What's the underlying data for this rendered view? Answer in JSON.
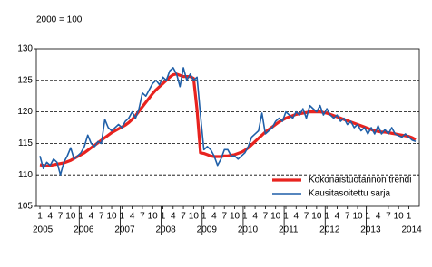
{
  "chart_data": {
    "type": "line",
    "annotation": "2000 = 100",
    "categories": [
      "1",
      null,
      null,
      "4",
      null,
      null,
      "7",
      null,
      null,
      "10",
      null,
      null,
      "1",
      null,
      null,
      "4",
      null,
      null,
      "7",
      null,
      null,
      "10",
      null,
      null,
      "1",
      null,
      null,
      "4",
      null,
      null,
      "7",
      null,
      null,
      "10",
      null,
      null,
      "1",
      null,
      null,
      "4",
      null,
      null,
      "7",
      null,
      null,
      "10",
      null,
      null,
      "1",
      null,
      null,
      "4",
      null,
      null,
      "7",
      null,
      null,
      "10",
      null,
      null,
      "1",
      null,
      null,
      "4",
      null,
      null,
      "7",
      null,
      null,
      "10",
      null,
      null,
      "1",
      null,
      null,
      "4",
      null,
      null,
      "7",
      null,
      null,
      "10",
      null,
      null,
      "1",
      null,
      null,
      "4",
      null,
      null,
      "7",
      null,
      null,
      "10",
      null,
      null,
      "1",
      null,
      null,
      "4",
      null,
      null,
      "7",
      null,
      null,
      "10",
      null,
      null,
      "1",
      null,
      null
    ],
    "year_labels": [
      "2005",
      "2006",
      "2007",
      "2008",
      "2009",
      "2010",
      "2011",
      "2012",
      "2013",
      "2014"
    ],
    "series": [
      {
        "name": "Kokonaistuotannon trendi",
        "color": "#e8231f",
        "values": [
          111.6,
          111.5,
          111.4,
          111.5,
          111.6,
          111.7,
          111.8,
          111.9,
          112.1,
          112.3,
          112.6,
          112.9,
          113.2,
          113.5,
          113.9,
          114.3,
          114.7,
          115.1,
          115.5,
          115.9,
          116.3,
          116.7,
          117.0,
          117.3,
          117.6,
          117.9,
          118.3,
          118.8,
          119.4,
          120.1,
          120.8,
          121.5,
          122.2,
          122.9,
          123.5,
          124.0,
          124.5,
          125.0,
          125.5,
          125.9,
          126.0,
          125.8,
          125.6,
          125.6,
          125.6,
          125.3,
          120.3,
          113.5,
          113.4,
          113.2,
          113.0,
          112.9,
          112.9,
          112.9,
          113.0,
          113.0,
          113.1,
          113.2,
          113.4,
          113.6,
          113.9,
          114.3,
          114.8,
          115.3,
          115.8,
          116.3,
          116.8,
          117.2,
          117.6,
          118.0,
          118.4,
          118.7,
          119.0,
          119.2,
          119.4,
          119.6,
          119.7,
          119.8,
          119.9,
          120.0,
          120.0,
          120.0,
          120.0,
          119.9,
          119.8,
          119.6,
          119.4,
          119.2,
          119.0,
          118.8,
          118.6,
          118.4,
          118.2,
          118.0,
          117.8,
          117.6,
          117.4,
          117.2,
          117.0,
          116.9,
          116.8,
          116.8,
          116.7,
          116.6,
          116.5,
          116.4,
          116.3,
          116.2,
          116.1,
          115.9,
          115.6
        ]
      },
      {
        "name": "Kausitasoitettu sarja",
        "color": "#1f5fa8",
        "values": [
          113.0,
          111.0,
          112.0,
          111.5,
          112.5,
          112.0,
          110.0,
          112.0,
          113.0,
          114.3,
          112.5,
          113.0,
          113.5,
          114.5,
          116.3,
          115.0,
          114.5,
          115.3,
          115.0,
          118.8,
          117.5,
          117.0,
          117.5,
          118.0,
          117.5,
          118.5,
          119.0,
          120.0,
          119.0,
          120.5,
          123.0,
          122.5,
          123.5,
          124.5,
          125.0,
          124.3,
          125.5,
          125.0,
          126.5,
          127.0,
          126.0,
          124.0,
          127.0,
          125.0,
          126.0,
          125.0,
          125.5,
          119.5,
          114.0,
          114.5,
          114.0,
          113.0,
          111.5,
          112.5,
          114.0,
          114.0,
          113.0,
          113.0,
          112.5,
          113.0,
          113.5,
          114.5,
          116.0,
          116.5,
          117.0,
          119.8,
          116.5,
          117.0,
          117.5,
          118.5,
          119.0,
          118.5,
          120.0,
          119.5,
          119.0,
          120.0,
          119.5,
          120.5,
          119.0,
          121.0,
          120.5,
          120.0,
          121.0,
          119.5,
          120.5,
          119.5,
          119.0,
          119.5,
          118.5,
          119.0,
          118.0,
          118.5,
          117.5,
          118.0,
          117.0,
          117.5,
          116.5,
          117.5,
          116.5,
          117.8,
          116.5,
          117.2,
          116.5,
          117.5,
          116.5,
          116.2,
          116.0,
          116.5,
          116.0,
          115.5,
          115.3
        ]
      }
    ],
    "ylim": [
      105,
      130
    ],
    "yticks": [
      105,
      110,
      115,
      120,
      125,
      130
    ],
    "grid": true,
    "legend": "lower right"
  }
}
